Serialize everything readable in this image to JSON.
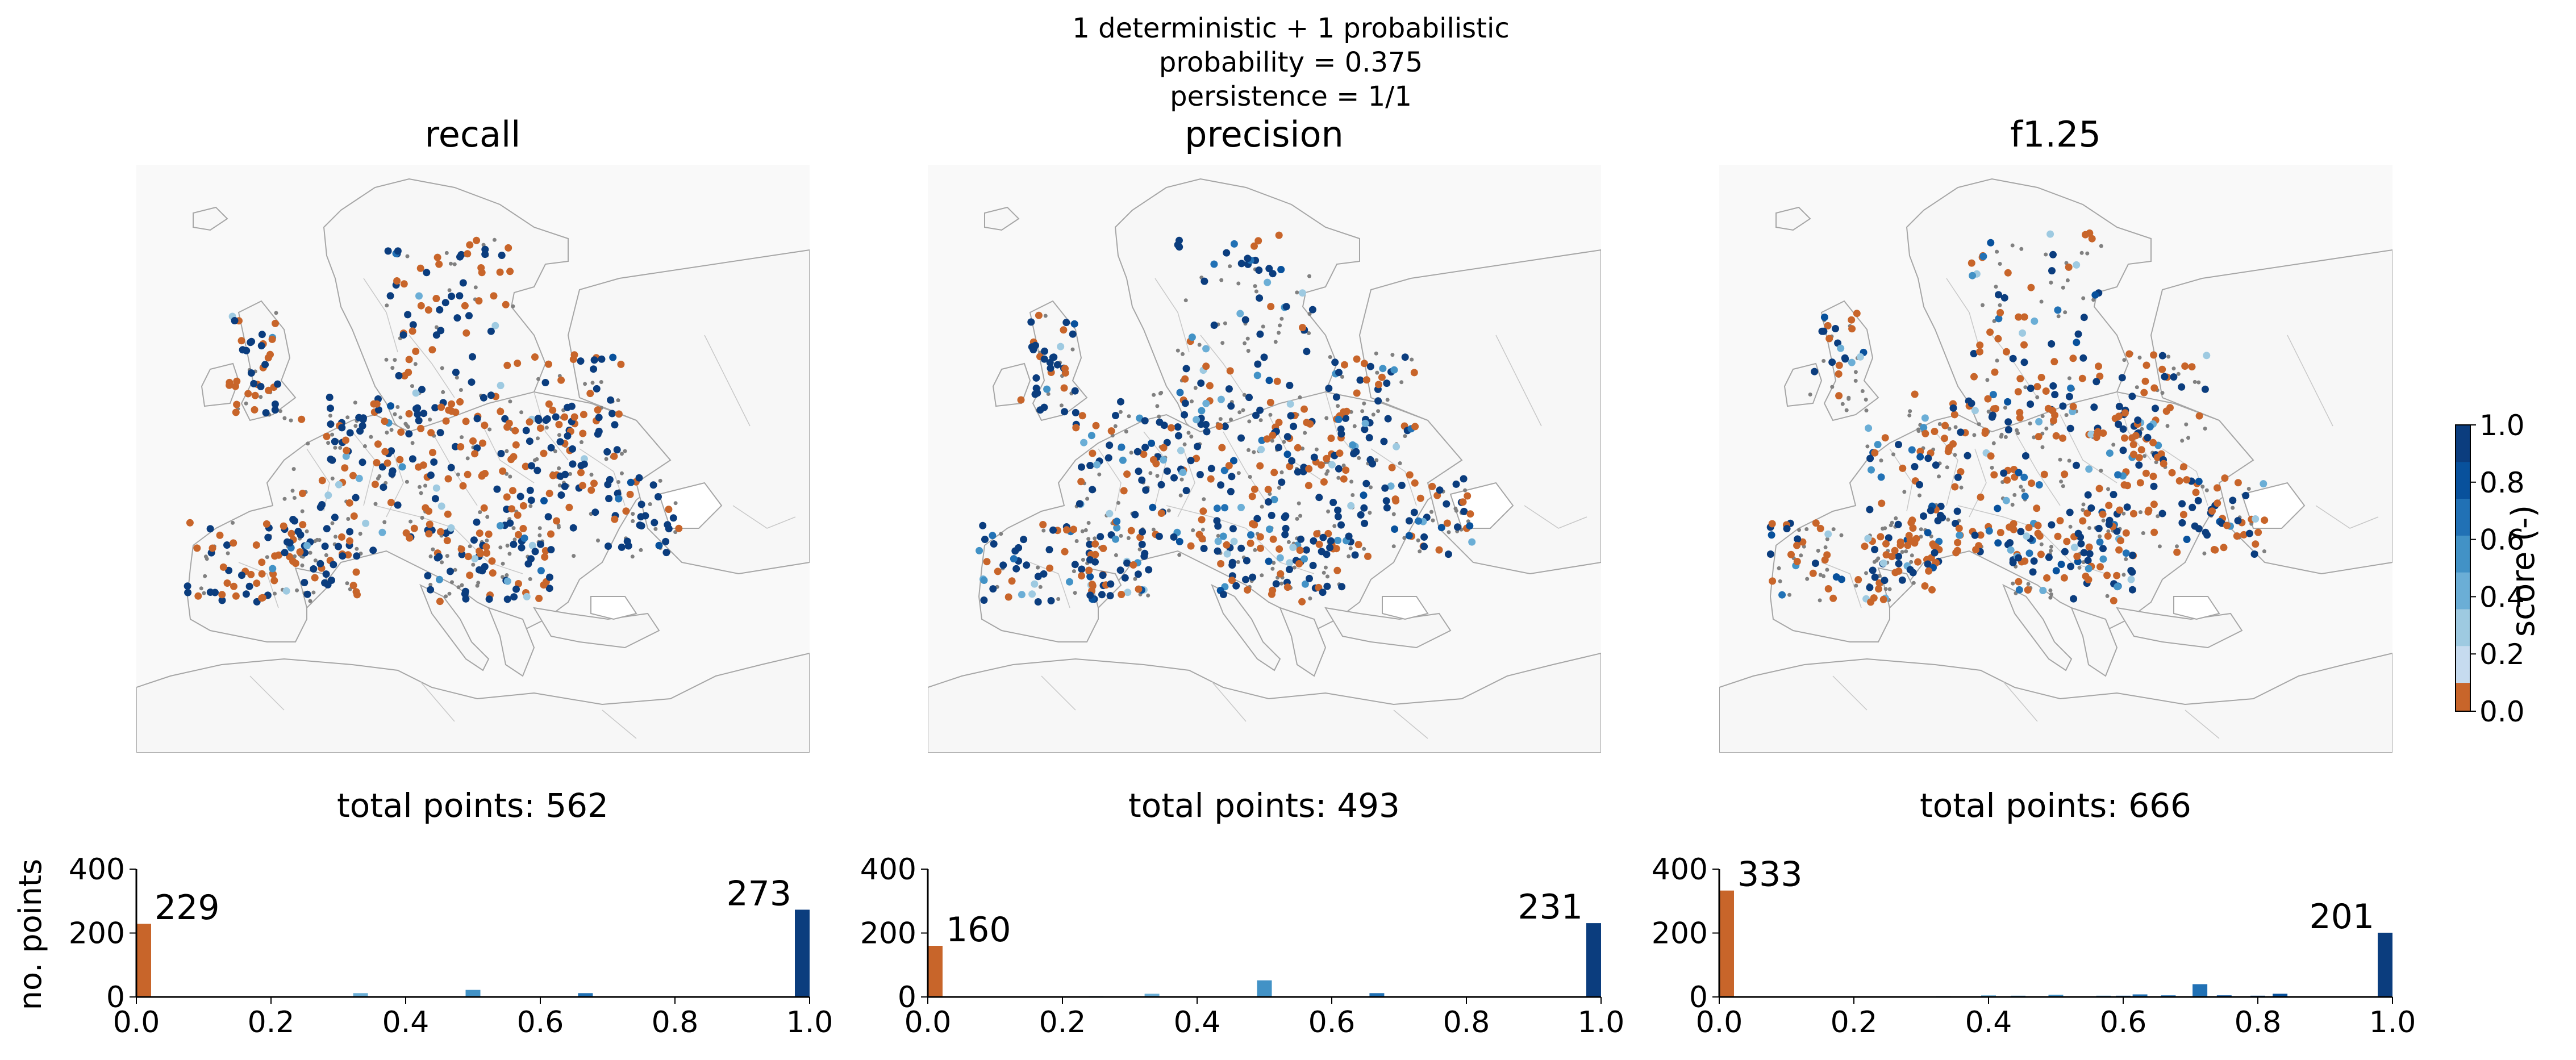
{
  "suptitle": [
    "1 deterministic + 1 probabilistic",
    "probability = 0.375",
    "persistence = 1/1"
  ],
  "colors": {
    "zero": "#c8652a",
    "ramp": [
      "#c6dbef",
      "#9ecae1",
      "#6baed6",
      "#4292c6",
      "#2171b5",
      "#08519c",
      "#0b3d7e"
    ],
    "no_obs": "#808080",
    "land": "#f7f7f7",
    "border": "#a6a6a6"
  },
  "colorbar": {
    "label": "score (-)",
    "ticks": [
      "0.0",
      "0.2",
      "0.4",
      "0.6",
      "0.8",
      "1.0"
    ]
  },
  "chart_data": [
    {
      "type": "scatter",
      "panel": "map",
      "title": "recall",
      "color_encoding": "score",
      "share_zero": 0.41,
      "share_one": 0.49,
      "grey_points": true
    },
    {
      "type": "scatter",
      "panel": "map",
      "title": "precision",
      "color_encoding": "score",
      "share_zero": 0.32,
      "share_one": 0.47,
      "grey_points": true
    },
    {
      "type": "scatter",
      "panel": "map",
      "title": "f1.25",
      "color_encoding": "score",
      "share_zero": 0.5,
      "share_one": 0.3,
      "grey_points": true
    },
    {
      "type": "bar",
      "panel": "histogram",
      "title": "total points: 562",
      "ylabel": "no. points",
      "xlim": [
        0,
        1
      ],
      "ylim": [
        0,
        400
      ],
      "xticks": [
        "0.0",
        "0.2",
        "0.4",
        "0.6",
        "0.8",
        "1.0"
      ],
      "yticks": [
        "0",
        "200",
        "400"
      ],
      "bars": [
        {
          "x": 0.0,
          "value": 229,
          "label": "229"
        },
        {
          "x": 0.333,
          "value": 12,
          "label": ""
        },
        {
          "x": 0.5,
          "value": 22,
          "label": ""
        },
        {
          "x": 0.667,
          "value": 12,
          "label": ""
        },
        {
          "x": 1.0,
          "value": 273,
          "label": "273"
        }
      ]
    },
    {
      "type": "bar",
      "panel": "histogram",
      "title": "total points: 493",
      "ylabel": "",
      "xlim": [
        0,
        1
      ],
      "ylim": [
        0,
        400
      ],
      "xticks": [
        "0.0",
        "0.2",
        "0.4",
        "0.6",
        "0.8",
        "1.0"
      ],
      "yticks": [
        "0",
        "200",
        "400"
      ],
      "bars": [
        {
          "x": 0.0,
          "value": 160,
          "label": "160"
        },
        {
          "x": 0.25,
          "value": 3,
          "label": ""
        },
        {
          "x": 0.333,
          "value": 10,
          "label": ""
        },
        {
          "x": 0.5,
          "value": 52,
          "label": ""
        },
        {
          "x": 0.667,
          "value": 12,
          "label": ""
        },
        {
          "x": 1.0,
          "value": 231,
          "label": "231"
        }
      ]
    },
    {
      "type": "bar",
      "panel": "histogram",
      "title": "total points: 666",
      "ylabel": "",
      "xlim": [
        0,
        1
      ],
      "ylim": [
        0,
        400
      ],
      "xticks": [
        "0.0",
        "0.2",
        "0.4",
        "0.6",
        "0.8",
        "1.0"
      ],
      "yticks": [
        "0",
        "200",
        "400"
      ],
      "bars": [
        {
          "x": 0.0,
          "value": 333,
          "label": "333"
        },
        {
          "x": 0.333,
          "value": 3,
          "label": ""
        },
        {
          "x": 0.4,
          "value": 5,
          "label": ""
        },
        {
          "x": 0.444,
          "value": 4,
          "label": ""
        },
        {
          "x": 0.5,
          "value": 7,
          "label": ""
        },
        {
          "x": 0.571,
          "value": 4,
          "label": ""
        },
        {
          "x": 0.6,
          "value": 4,
          "label": ""
        },
        {
          "x": 0.625,
          "value": 8,
          "label": ""
        },
        {
          "x": 0.667,
          "value": 5,
          "label": ""
        },
        {
          "x": 0.714,
          "value": 40,
          "label": ""
        },
        {
          "x": 0.75,
          "value": 5,
          "label": ""
        },
        {
          "x": 0.8,
          "value": 4,
          "label": ""
        },
        {
          "x": 0.833,
          "value": 10,
          "label": ""
        },
        {
          "x": 1.0,
          "value": 201,
          "label": "201"
        }
      ]
    }
  ]
}
